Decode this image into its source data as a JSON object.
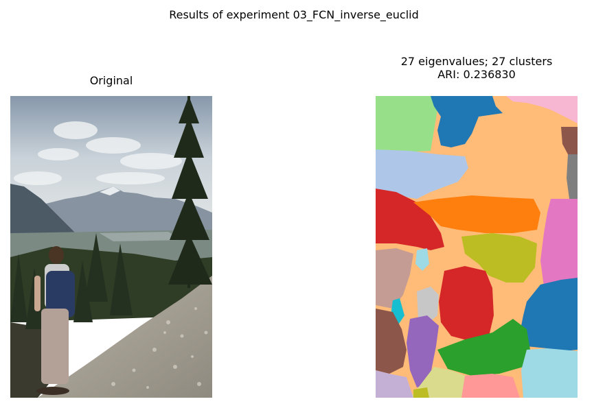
{
  "figure": {
    "suptitle": "Results of experiment 03_FCN_inverse_euclid"
  },
  "left_panel": {
    "title": "Original"
  },
  "right_panel": {
    "title_line1": "27 eigenvalues; 27 clusters",
    "title_line2": "ARI: 0.236830"
  },
  "colors": {
    "sky_top": "#8fa1b3",
    "sky_mid": "#c7d0d8",
    "mountain_far": "#7a8896",
    "mountain_near": "#55636f",
    "valley": "#6b7f6a",
    "forest": "#2b3a22",
    "slope": "#a6a094",
    "person_shirt": "#cfcfcf",
    "backpack": "#2a3b63",
    "pants": "#b5a299",
    "hair": "#4a3424"
  },
  "segmentation_palette": [
    "#98df8a",
    "#1f77b4",
    "#ffbb78",
    "#f7b6d2",
    "#8c564b",
    "#aec7e8",
    "#7f7f7f",
    "#d62728",
    "#ff7f0e",
    "#e377c2",
    "#bcbd22",
    "#c49c94",
    "#9edae5",
    "#17becf",
    "#c7c7c7",
    "#9467bd",
    "#2ca02c",
    "#c5b0d5",
    "#dbdb8d",
    "#ff9896"
  ]
}
